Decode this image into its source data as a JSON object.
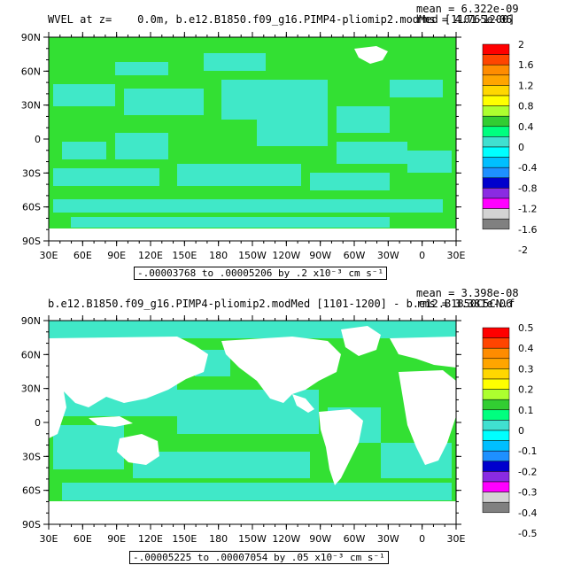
{
  "panels": [
    {
      "title_left": "WVEL at z=    0.0m, b.e12.B1850.f09_g16.PIMP4-pliomip2.modMed [1101-1200]",
      "stats_mean": "mean = 6.322e-09",
      "stats_rms": "rms = 4.765e-06",
      "range_text": "-.00003768 to .00005206 by .2 x10⁻³ cm s⁻¹",
      "colorbar_labels": [
        "2",
        "1.6",
        "1.2",
        "0.8",
        "0.4",
        "0",
        "-0.4",
        "-0.8",
        "-1.2",
        "-1.6",
        "-2"
      ]
    },
    {
      "title_left": "b.e12.B1850.f09_g16.PIMP4-pliomip2.modMed [1101-1200] - b.e12.B1850C5CN.f",
      "stats_mean": "mean = 3.398e-08",
      "stats_rms": "rms = 3.381e-06",
      "range_text": "-.00005225 to .00007054 by .05 x10⁻³ cm s⁻¹",
      "colorbar_labels": [
        "0.5",
        "0.4",
        "0.3",
        "0.2",
        "0.1",
        "0",
        "-0.1",
        "-0.2",
        "-0.3",
        "-0.4",
        "-0.5"
      ]
    }
  ],
  "lat_labels": [
    "90N",
    "60N",
    "30N",
    "0",
    "30S",
    "60S",
    "90S"
  ],
  "lon_labels": [
    "30E",
    "60E",
    "90E",
    "120E",
    "150E",
    "180",
    "150W",
    "120W",
    "90W",
    "60W",
    "30W",
    "0",
    "30E"
  ],
  "colorbar_colors": [
    "#ff0000",
    "#ff4500",
    "#ff8c00",
    "#ffa500",
    "#ffd700",
    "#ffff00",
    "#adff2f",
    "#32cd32",
    "#00ff7f",
    "#40e0d0",
    "#00ffff",
    "#00bfff",
    "#1e90ff",
    "#0000cd",
    "#8a2be2",
    "#ff00ff",
    "#d3d3d3",
    "#808080"
  ],
  "colors": {
    "ocean_green": "#33e033",
    "ocean_cyan": "#40e8c8",
    "land": "#ffffff"
  }
}
